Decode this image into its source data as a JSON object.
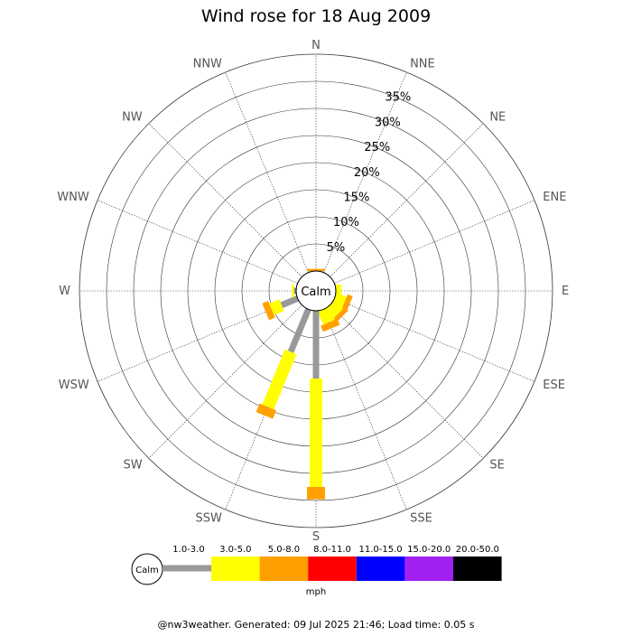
{
  "chart_data": {
    "type": "wind-rose",
    "title": "Wind rose for 18 Aug 2009",
    "center_label": "Calm",
    "directions": [
      "N",
      "NNE",
      "NE",
      "ENE",
      "E",
      "ESE",
      "SE",
      "SSE",
      "S",
      "SSW",
      "SW",
      "WSW",
      "W",
      "WNW",
      "NW",
      "NNW"
    ],
    "radial_unit": "%",
    "radial_max": 40,
    "radial_ticks": [
      5,
      10,
      15,
      20,
      25,
      30,
      35
    ],
    "radial_tick_labels": [
      "5%",
      "10%",
      "15%",
      "20%",
      "25%",
      "30%",
      "35%"
    ],
    "speed_unit": "mph",
    "speed_bins": [
      {
        "label": "1.0-3.0",
        "color": "#999999"
      },
      {
        "label": "3.0-5.0",
        "color": "#ffff00"
      },
      {
        "label": "5.0-8.0",
        "color": "#ffa000"
      },
      {
        "label": "8.0-11.0",
        "color": "#ff0000"
      },
      {
        "label": "11.0-15.0",
        "color": "#0000ff"
      },
      {
        "label": "15.0-20.0",
        "color": "#a020f0"
      },
      {
        "label": "20.0-50.0",
        "color": "#000000"
      }
    ],
    "series": [
      {
        "values": [
          0,
          0,
          0,
          0,
          0,
          0,
          0,
          0,
          12.5,
          8.5,
          0,
          3.2,
          0.4,
          0,
          0,
          0
        ]
      },
      {
        "values": [
          0,
          0,
          0,
          0,
          1.0,
          2.0,
          2.2,
          2.6,
          20.0,
          11.0,
          0,
          2.0,
          0.4,
          0,
          0,
          0
        ]
      },
      {
        "values": [
          0.4,
          0,
          0,
          0,
          0,
          1.0,
          0.9,
          1.2,
          2.3,
          1.7,
          0,
          1.2,
          0,
          0,
          0,
          0
        ]
      },
      {
        "values": [
          0,
          0,
          0,
          0,
          0,
          0,
          0,
          0,
          0,
          0,
          0,
          0,
          0,
          0,
          0,
          0
        ]
      },
      {
        "values": [
          0,
          0,
          0,
          0,
          0,
          0,
          0,
          0,
          0,
          0,
          0,
          0,
          0,
          0,
          0,
          0
        ]
      },
      {
        "values": [
          0,
          0,
          0,
          0,
          0,
          0,
          0,
          0,
          0,
          0,
          0,
          0,
          0,
          0,
          0,
          0
        ]
      },
      {
        "values": [
          0,
          0,
          0,
          0,
          0,
          0,
          0,
          0,
          0,
          0,
          0,
          0,
          0,
          0,
          0,
          0
        ]
      }
    ]
  },
  "footer": "@nw3weather. Generated: 09 Jul 2025 21:46; Load time: 0.05 s"
}
